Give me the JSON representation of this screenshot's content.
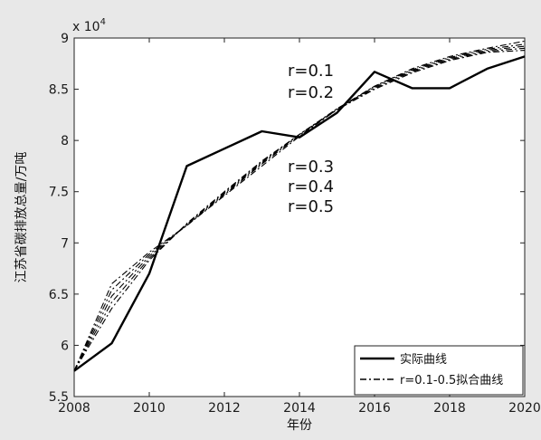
{
  "chart_data": {
    "type": "line",
    "title": "",
    "xlabel": "年份",
    "ylabel": "江苏省碳排放总量/万吨",
    "y_multiplier_label": "x 10",
    "y_multiplier_exp": "4",
    "xlim": [
      2008,
      2020
    ],
    "ylim": [
      55000,
      90000
    ],
    "x_ticks": [
      2008,
      2010,
      2012,
      2014,
      2016,
      2018,
      2020
    ],
    "y_ticks": [
      {
        "value": 55000,
        "label": "5.5"
      },
      {
        "value": 60000,
        "label": "6"
      },
      {
        "value": 65000,
        "label": "6.5"
      },
      {
        "value": 70000,
        "label": "7"
      },
      {
        "value": 75000,
        "label": "7.5"
      },
      {
        "value": 80000,
        "label": "8"
      },
      {
        "value": 85000,
        "label": "8.5"
      },
      {
        "value": 90000,
        "label": "9"
      }
    ],
    "grid": false,
    "legend_position": "bottom-right",
    "legend": [
      {
        "label": "实际曲线",
        "style": "solid"
      },
      {
        "label": "r=0.1-0.5拟合曲线",
        "style": "dash-dot"
      }
    ],
    "annotations": [
      "r=0.1",
      "r=0.2",
      "r=0.3",
      "r=0.4",
      "r=0.5"
    ],
    "x": [
      2008,
      2009,
      2010,
      2011,
      2012,
      2013,
      2014,
      2015,
      2016,
      2017,
      2018,
      2019,
      2020
    ],
    "series": [
      {
        "style": "solid",
        "values": [
          57500,
          60200,
          67000,
          77500,
          79200,
          80900,
          80300,
          82700,
          86700,
          85100,
          85100,
          87000,
          88200
        ]
      },
      {
        "style": "dash-dot",
        "values": [
          57500,
          66000,
          69100,
          71700,
          74600,
          77500,
          80400,
          83000,
          85300,
          87000,
          88200,
          89000,
          89700
        ]
      },
      {
        "style": "dash-dot",
        "values": [
          57500,
          65400,
          68900,
          71700,
          74700,
          77700,
          80500,
          83100,
          85300,
          86900,
          88100,
          88900,
          89400
        ]
      },
      {
        "style": "dash-dot",
        "values": [
          57500,
          64800,
          68700,
          71800,
          74800,
          77800,
          80600,
          83100,
          85200,
          86800,
          88000,
          88800,
          89200
        ]
      },
      {
        "style": "dash-dot",
        "values": [
          57500,
          64200,
          68500,
          71800,
          74900,
          77900,
          80600,
          83000,
          85100,
          86700,
          87900,
          88700,
          89000
        ]
      },
      {
        "style": "dash-dot",
        "values": [
          57500,
          63600,
          68300,
          71900,
          75000,
          78000,
          80600,
          83000,
          85000,
          86600,
          87800,
          88600,
          88800
        ]
      }
    ]
  }
}
